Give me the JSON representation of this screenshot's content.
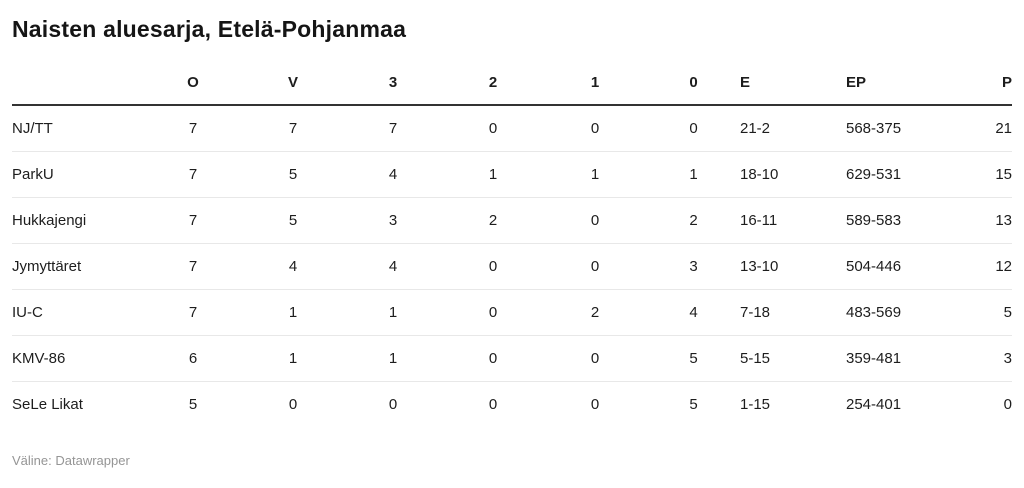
{
  "title": "Naisten aluesarja, Etelä-Pohjanmaa",
  "footer": "Väline: Datawrapper",
  "colors": {
    "title_text": "#151515",
    "body_text": "#1d1d1d",
    "header_rule": "#333333",
    "row_divider": "#e8e8e8",
    "attribution_text": "#959595",
    "background": "#ffffff"
  },
  "chart_data": {
    "type": "table",
    "title": "Naisten aluesarja, Etelä-Pohjanmaa",
    "columns": [
      "",
      "O",
      "V",
      "3",
      "2",
      "1",
      "0",
      "E",
      "EP",
      "P"
    ],
    "rows": [
      {
        "team": "NJ/TT",
        "cells": [
          7,
          7,
          7,
          0,
          0,
          0,
          "21-2",
          "568-375",
          21
        ]
      },
      {
        "team": "ParkU",
        "cells": [
          7,
          5,
          4,
          1,
          1,
          1,
          "18-10",
          "629-531",
          15
        ]
      },
      {
        "team": "Hukkajengi",
        "cells": [
          7,
          5,
          3,
          2,
          0,
          2,
          "16-11",
          "589-583",
          13
        ]
      },
      {
        "team": "Jymyttäret",
        "cells": [
          7,
          4,
          4,
          0,
          0,
          3,
          "13-10",
          "504-446",
          12
        ]
      },
      {
        "team": "IU-C",
        "cells": [
          7,
          1,
          1,
          0,
          2,
          4,
          "7-18",
          "483-569",
          5
        ]
      },
      {
        "team": "KMV-86",
        "cells": [
          6,
          1,
          1,
          0,
          0,
          5,
          "5-15",
          "359-481",
          3
        ]
      },
      {
        "team": "SeLe Likat",
        "cells": [
          5,
          0,
          0,
          0,
          0,
          5,
          "1-15",
          "254-401",
          0
        ]
      }
    ],
    "layout_hints": {
      "header_rule": "2px solid dark",
      "row_dividers": "1px light gray",
      "alignment": [
        "left",
        "center",
        "center",
        "center",
        "center",
        "center",
        "center",
        "left",
        "left",
        "right"
      ]
    }
  }
}
